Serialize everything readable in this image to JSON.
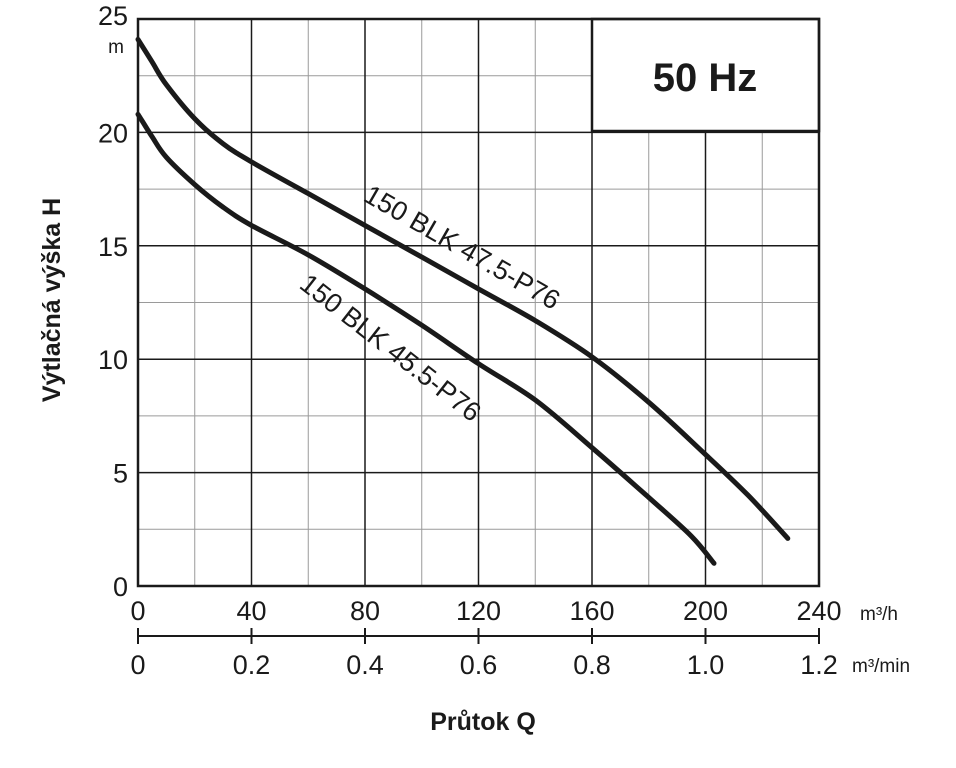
{
  "chart_data": {
    "type": "line",
    "title": "",
    "frequency_label": "50 Hz",
    "xlabel": "Průtok Q",
    "ylabel": "Výtlačná výška H",
    "y_unit": "m",
    "xlim": [
      0,
      240
    ],
    "ylim": [
      0,
      25
    ],
    "grid": true,
    "x_ticks": [
      "0",
      "40",
      "80",
      "120",
      "160",
      "200",
      "240"
    ],
    "x_unit": "m³/h",
    "x2_ticks": [
      "0",
      "0.2",
      "0.4",
      "0.6",
      "0.8",
      "1.0",
      "1.2"
    ],
    "x2_unit": "m³/min",
    "y_ticks": [
      "0",
      "5",
      "10",
      "15",
      "20",
      "25"
    ],
    "series": [
      {
        "name": "150 BLK 47.5-P76",
        "x": [
          0,
          5,
          10,
          20,
          30,
          40,
          60,
          80,
          100,
          120,
          140,
          160,
          180,
          200,
          215,
          229
        ],
        "y": [
          24.1,
          23.1,
          22.1,
          20.6,
          19.5,
          18.7,
          17.3,
          15.9,
          14.5,
          13.1,
          11.7,
          10.1,
          8.1,
          5.8,
          4.0,
          2.1
        ]
      },
      {
        "name": "150 BLK 45.5-P76",
        "x": [
          0,
          5,
          10,
          20,
          30,
          40,
          60,
          80,
          100,
          120,
          140,
          160,
          180,
          195,
          203
        ],
        "y": [
          20.8,
          19.8,
          18.9,
          17.7,
          16.7,
          15.9,
          14.6,
          13.1,
          11.5,
          9.8,
          8.2,
          6.1,
          3.9,
          2.2,
          1.0
        ]
      }
    ]
  }
}
